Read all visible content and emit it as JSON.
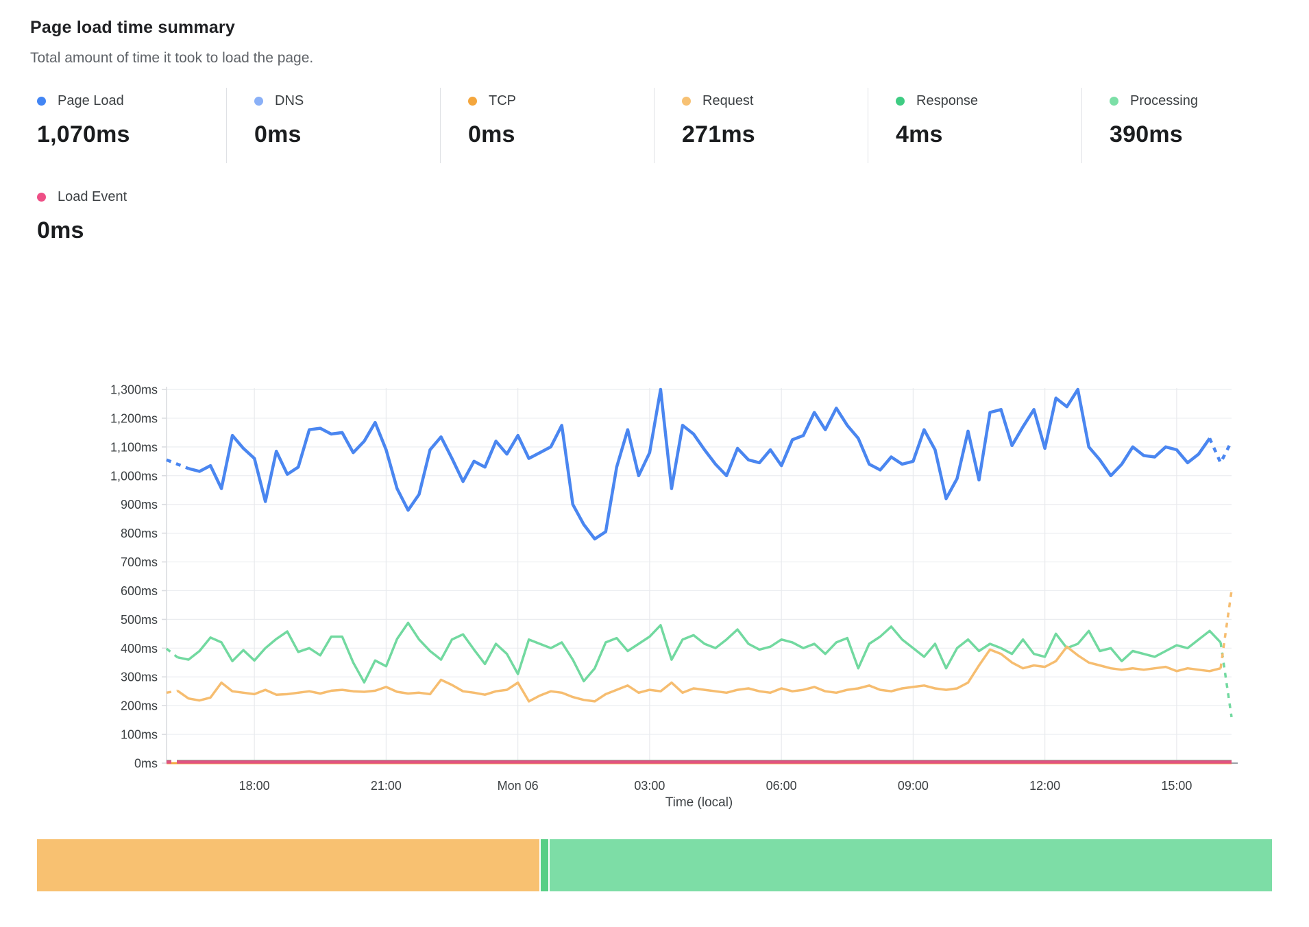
{
  "header": {
    "title": "Page load time summary",
    "subtitle": "Total amount of time it took to load the page."
  },
  "stats": [
    {
      "label": "Page Load",
      "value": "1,070ms",
      "dot_color": "#4285f4"
    },
    {
      "label": "DNS",
      "value": "0ms",
      "dot_color": "#8ab0f7"
    },
    {
      "label": "TCP",
      "value": "0ms",
      "dot_color": "#f4a63d"
    },
    {
      "label": "Request",
      "value": "271ms",
      "dot_color": "#f7c173"
    },
    {
      "label": "Response",
      "value": "4ms",
      "dot_color": "#3fcc83"
    },
    {
      "label": "Processing",
      "value": "390ms",
      "dot_color": "#7cdfa7"
    }
  ],
  "stats_row2": [
    {
      "label": "Load Event",
      "value": "0ms",
      "dot_color": "#ee4f86"
    }
  ],
  "chart_data": {
    "type": "line",
    "title": "Page load time summary",
    "xlabel": "Time (local)",
    "ylabel": "",
    "ylim": [
      0,
      1300
    ],
    "y_step": 100,
    "y_tick_labels": [
      "0ms",
      "100ms",
      "200ms",
      "300ms",
      "400ms",
      "500ms",
      "600ms",
      "700ms",
      "800ms",
      "900ms",
      "1,000ms",
      "1,100ms",
      "1,200ms",
      "1,300ms"
    ],
    "x_start": "Sun 16:00",
    "x_interval_minutes": 15,
    "x_point_count": 98,
    "x_ticks": [
      {
        "index": 8,
        "label": "18:00"
      },
      {
        "index": 20,
        "label": "21:00"
      },
      {
        "index": 32,
        "label": "Mon 06"
      },
      {
        "index": 44,
        "label": "03:00"
      },
      {
        "index": 56,
        "label": "06:00"
      },
      {
        "index": 68,
        "label": "09:00"
      },
      {
        "index": 80,
        "label": "12:00"
      },
      {
        "index": 92,
        "label": "15:00"
      }
    ],
    "grid": true,
    "legend_position": "top-stats",
    "series": [
      {
        "name": "DNS",
        "color": "#8ab0f7",
        "width": 3,
        "constant": 0
      },
      {
        "name": "TCP",
        "color": "#f4a63d",
        "width": 3,
        "constant": 0
      },
      {
        "name": "Response",
        "color": "#56d392",
        "width": 3,
        "constant": 8,
        "dash_start": 1
      },
      {
        "name": "Load Event",
        "color": "#e15380",
        "width": 5,
        "constant": 4,
        "dash_start": 1
      },
      {
        "name": "Processing",
        "color": "#72d9a0",
        "width": 3.5,
        "dash_start": 1,
        "dash_end": 1,
        "values": [
          398,
          368,
          360,
          390,
          437,
          420,
          355,
          393,
          357,
          400,
          432,
          458,
          387,
          400,
          375,
          440,
          440,
          350,
          281,
          357,
          337,
          432,
          488,
          430,
          390,
          360,
          430,
          448,
          395,
          345,
          415,
          380,
          310,
          430,
          415,
          400,
          420,
          360,
          285,
          330,
          420,
          435,
          390,
          415,
          440,
          480,
          360,
          430,
          445,
          415,
          400,
          430,
          465,
          415,
          395,
          405,
          430,
          420,
          400,
          415,
          380,
          420,
          435,
          330,
          415,
          440,
          475,
          430,
          400,
          370,
          415,
          330,
          400,
          430,
          390,
          415,
          400,
          380,
          430,
          380,
          370,
          450,
          400,
          415,
          460,
          390,
          400,
          355,
          390,
          380,
          370,
          390,
          410,
          400,
          430,
          460,
          420,
          160
        ]
      },
      {
        "name": "Request",
        "color": "#f6bd70",
        "width": 3.5,
        "dash_start": 1,
        "dash_end": 1,
        "values": [
          245,
          252,
          225,
          218,
          228,
          280,
          250,
          245,
          240,
          255,
          238,
          240,
          245,
          250,
          242,
          252,
          255,
          250,
          248,
          252,
          265,
          248,
          242,
          245,
          240,
          290,
          272,
          250,
          245,
          238,
          250,
          255,
          280,
          215,
          235,
          250,
          245,
          230,
          220,
          215,
          240,
          255,
          270,
          245,
          255,
          250,
          280,
          245,
          260,
          255,
          250,
          245,
          255,
          260,
          250,
          245,
          260,
          250,
          255,
          265,
          250,
          245,
          255,
          260,
          270,
          255,
          250,
          260,
          265,
          270,
          260,
          255,
          260,
          280,
          340,
          395,
          380,
          350,
          330,
          340,
          335,
          355,
          405,
          375,
          350,
          340,
          330,
          325,
          330,
          325,
          330,
          335,
          320,
          330,
          325,
          320,
          330,
          600
        ]
      },
      {
        "name": "Page Load",
        "color": "#4a86f0",
        "width": 4.5,
        "dash_start": 2,
        "dash_end": 2,
        "values": [
          1055,
          1040,
          1025,
          1015,
          1035,
          955,
          1140,
          1095,
          1060,
          910,
          1085,
          1005,
          1030,
          1160,
          1165,
          1145,
          1150,
          1080,
          1120,
          1185,
          1090,
          955,
          880,
          935,
          1090,
          1135,
          1060,
          980,
          1050,
          1030,
          1120,
          1075,
          1140,
          1060,
          1080,
          1100,
          1175,
          900,
          830,
          780,
          805,
          1030,
          1160,
          1000,
          1080,
          1300,
          955,
          1175,
          1145,
          1090,
          1040,
          1000,
          1095,
          1055,
          1045,
          1090,
          1035,
          1125,
          1140,
          1220,
          1160,
          1235,
          1175,
          1130,
          1040,
          1020,
          1065,
          1040,
          1050,
          1160,
          1090,
          920,
          990,
          1155,
          985,
          1220,
          1230,
          1105,
          1170,
          1230,
          1095,
          1270,
          1240,
          1300,
          1100,
          1055,
          1000,
          1040,
          1100,
          1070,
          1065,
          1100,
          1090,
          1045,
          1075,
          1130,
          1045,
          1120
        ]
      }
    ]
  },
  "timeline_bar": {
    "segments": [
      {
        "name": "request-phase",
        "color": "#f8c171",
        "percent": 40.7
      },
      {
        "name": "gap-1",
        "color": "#ffffff",
        "percent": 0.1
      },
      {
        "name": "response-phase",
        "color": "#57cf85",
        "percent": 0.6
      },
      {
        "name": "gap-2",
        "color": "#ffffff",
        "percent": 0.1
      },
      {
        "name": "processing-phase",
        "color": "#7ddda6",
        "percent": 58.5
      }
    ]
  },
  "colors": {
    "grid_line": "#ebedf0",
    "grid_line_vertical": "#e8eaed",
    "axis_line": "#dadce0",
    "tick_label": "#3c4043",
    "axis_title": "#3c4043"
  }
}
